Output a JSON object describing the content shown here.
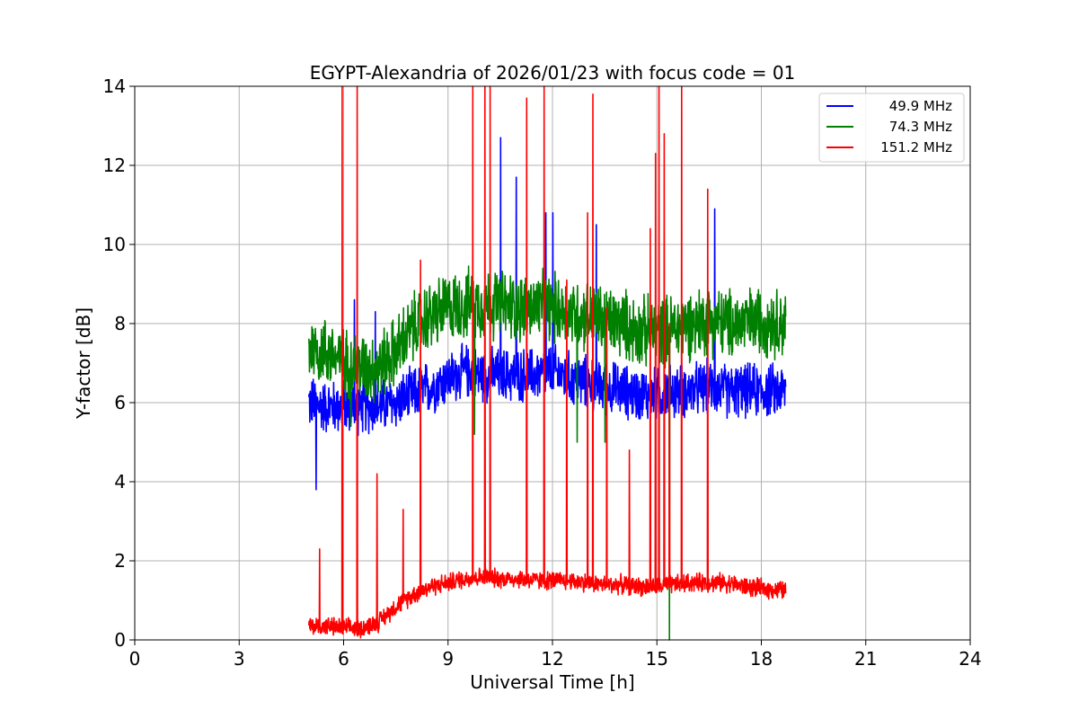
{
  "chart_data": {
    "type": "line",
    "title": "EGYPT-Alexandria of 2026/01/23 with focus code = 01",
    "xlabel": "Universal Time [h]",
    "ylabel": "Y-factor [dB]",
    "xlim": [
      0,
      24
    ],
    "ylim": [
      0,
      14
    ],
    "xticks": [
      0,
      3,
      6,
      9,
      12,
      15,
      18,
      21,
      24
    ],
    "yticks": [
      0,
      2,
      4,
      6,
      8,
      10,
      12,
      14
    ],
    "xtick_labels": [
      "0",
      "3",
      "6",
      "9",
      "12",
      "15",
      "18",
      "21",
      "24"
    ],
    "ytick_labels": [
      "0",
      "2",
      "4",
      "6",
      "8",
      "10",
      "12",
      "14"
    ],
    "grid": true,
    "legend_position": "top-right",
    "series": [
      {
        "name": "49.9 MHz",
        "color": "#0000ff",
        "x": [
          5.0,
          5.5,
          6.0,
          6.5,
          7.0,
          7.5,
          8.0,
          8.5,
          9.0,
          9.5,
          10.0,
          10.5,
          11.0,
          11.5,
          12.0,
          12.5,
          13.0,
          13.5,
          14.0,
          14.5,
          15.0,
          15.5,
          16.0,
          16.5,
          17.0,
          17.5,
          18.0,
          18.7
        ],
        "y": [
          6.0,
          5.9,
          5.9,
          5.9,
          5.9,
          6.0,
          6.2,
          6.4,
          6.6,
          6.8,
          6.7,
          6.7,
          6.7,
          6.7,
          6.8,
          6.6,
          6.5,
          6.4,
          6.3,
          6.2,
          6.2,
          6.3,
          6.3,
          6.4,
          6.3,
          6.3,
          6.3,
          6.3
        ],
        "spikes": [
          [
            5.2,
            3.8
          ],
          [
            6.3,
            8.6
          ],
          [
            6.9,
            8.3
          ],
          [
            10.5,
            12.7
          ],
          [
            10.95,
            11.7
          ],
          [
            11.8,
            10.8
          ],
          [
            12.0,
            10.8
          ],
          [
            13.25,
            10.5
          ],
          [
            16.65,
            10.9
          ]
        ]
      },
      {
        "name": "74.3 MHz",
        "color": "#008000",
        "x": [
          5.0,
          5.5,
          6.0,
          6.5,
          7.0,
          7.5,
          8.0,
          8.5,
          9.0,
          9.5,
          10.0,
          10.5,
          11.0,
          11.5,
          12.0,
          12.5,
          13.0,
          13.5,
          14.0,
          14.5,
          15.0,
          15.5,
          16.0,
          16.5,
          17.0,
          17.5,
          18.0,
          18.7
        ],
        "y": [
          7.4,
          7.3,
          7.0,
          6.9,
          6.9,
          7.3,
          7.9,
          8.2,
          8.4,
          8.5,
          8.5,
          8.5,
          8.4,
          8.4,
          8.4,
          8.3,
          8.2,
          8.1,
          8.0,
          7.8,
          7.8,
          7.9,
          8.0,
          8.1,
          8.0,
          8.0,
          8.1,
          8.0
        ],
        "spikes": [
          [
            9.75,
            5.2
          ],
          [
            15.35,
            0.0
          ],
          [
            12.7,
            5.0
          ],
          [
            13.5,
            5.0
          ],
          [
            6.2,
            5.4
          ]
        ]
      },
      {
        "name": "151.2 MHz",
        "color": "#ff0000",
        "x": [
          5.0,
          5.5,
          6.0,
          6.5,
          7.0,
          7.5,
          8.0,
          8.5,
          9.0,
          9.5,
          10.0,
          10.5,
          11.0,
          11.5,
          12.0,
          12.5,
          13.0,
          13.5,
          14.0,
          14.5,
          15.0,
          15.5,
          16.0,
          16.5,
          17.0,
          17.5,
          18.0,
          18.7
        ],
        "y": [
          0.35,
          0.35,
          0.3,
          0.3,
          0.45,
          0.85,
          1.15,
          1.35,
          1.45,
          1.55,
          1.6,
          1.55,
          1.55,
          1.5,
          1.5,
          1.5,
          1.45,
          1.4,
          1.4,
          1.35,
          1.35,
          1.4,
          1.45,
          1.45,
          1.45,
          1.35,
          1.3,
          1.25
        ],
        "spikes": [
          [
            5.95,
            14.0
          ],
          [
            6.38,
            14.0
          ],
          [
            6.95,
            4.2
          ],
          [
            7.7,
            3.3
          ],
          [
            8.2,
            9.6
          ],
          [
            9.7,
            14.0
          ],
          [
            10.05,
            14.0
          ],
          [
            10.2,
            14.0
          ],
          [
            11.25,
            13.7
          ],
          [
            11.75,
            14.0
          ],
          [
            12.4,
            9.1
          ],
          [
            13.0,
            10.8
          ],
          [
            13.15,
            13.8
          ],
          [
            13.55,
            8.4
          ],
          [
            14.2,
            4.8
          ],
          [
            14.8,
            10.4
          ],
          [
            14.95,
            12.3
          ],
          [
            15.05,
            14.0
          ],
          [
            15.2,
            12.8
          ],
          [
            15.35,
            8.0
          ],
          [
            15.7,
            14.0
          ],
          [
            16.45,
            11.4
          ],
          [
            5.3,
            2.3
          ]
        ]
      }
    ]
  }
}
